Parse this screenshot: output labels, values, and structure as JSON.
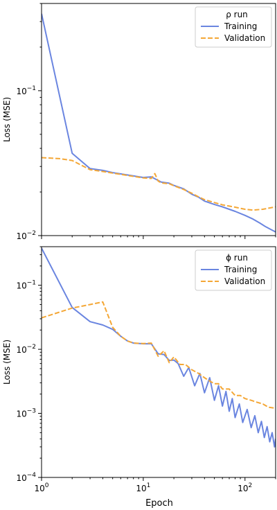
{
  "colors": {
    "training": "#6a85e0",
    "validation": "#f4a736",
    "background": "#ffffff",
    "axes": "#000000"
  },
  "figure": {
    "xlabel": "Epoch"
  },
  "chart_data": [
    {
      "type": "line",
      "ylabel": "Loss (MSE)",
      "xscale": "log",
      "yscale": "log",
      "xlim": [
        1,
        200
      ],
      "ylim": [
        0.01,
        0.4
      ],
      "x_ticks": [
        {
          "value": 1,
          "base": "10",
          "exp": "0"
        },
        {
          "value": 10,
          "base": "10",
          "exp": "1"
        },
        {
          "value": 100,
          "base": "10",
          "exp": "2"
        }
      ],
      "y_ticks": [
        {
          "value": 0.1,
          "base": "10",
          "exp": "−1"
        },
        {
          "value": 0.01,
          "base": "10",
          "exp": "−2"
        }
      ],
      "legend": {
        "title": "ρ run",
        "placement": "top-right",
        "entries": [
          "Training",
          "Validation"
        ]
      },
      "grid": false,
      "series": [
        {
          "name": "Training",
          "style": "solid",
          "points": [
            [
              1,
              0.34
            ],
            [
              2,
              0.037
            ],
            [
              3,
              0.029
            ],
            [
              4,
              0.0282
            ],
            [
              5,
              0.0272
            ],
            [
              7,
              0.0262
            ],
            [
              10,
              0.0252
            ],
            [
              12,
              0.0254
            ],
            [
              15,
              0.0234
            ],
            [
              18,
              0.023
            ],
            [
              20,
              0.0222
            ],
            [
              25,
              0.021
            ],
            [
              30,
              0.0193
            ],
            [
              35,
              0.0184
            ],
            [
              40,
              0.0173
            ],
            [
              50,
              0.0164
            ],
            [
              60,
              0.0158
            ],
            [
              70,
              0.0152
            ],
            [
              80,
              0.0147
            ],
            [
              100,
              0.0138
            ],
            [
              120,
              0.013
            ],
            [
              140,
              0.0122
            ],
            [
              160,
              0.0115
            ],
            [
              180,
              0.011
            ],
            [
              200,
              0.0106
            ]
          ]
        },
        {
          "name": "Validation",
          "style": "dashed",
          "points": [
            [
              1,
              0.0345
            ],
            [
              1.5,
              0.034
            ],
            [
              2,
              0.033
            ],
            [
              3,
              0.0285
            ],
            [
              4,
              0.0277
            ],
            [
              5,
              0.027
            ],
            [
              7,
              0.026
            ],
            [
              10,
              0.025
            ],
            [
              12,
              0.0248
            ],
            [
              13,
              0.0268
            ],
            [
              14,
              0.0238
            ],
            [
              15,
              0.0231
            ],
            [
              18,
              0.0228
            ],
            [
              20,
              0.0221
            ],
            [
              25,
              0.0208
            ],
            [
              30,
              0.0196
            ],
            [
              35,
              0.0185
            ],
            [
              40,
              0.0177
            ],
            [
              50,
              0.0169
            ],
            [
              60,
              0.0163
            ],
            [
              80,
              0.0157
            ],
            [
              100,
              0.0152
            ],
            [
              120,
              0.015
            ],
            [
              150,
              0.0152
            ],
            [
              200,
              0.0158
            ]
          ]
        }
      ]
    },
    {
      "type": "line",
      "ylabel": "Loss (MSE)",
      "xscale": "log",
      "yscale": "log",
      "xlim": [
        1,
        200
      ],
      "ylim": [
        0.0001,
        0.4
      ],
      "x_ticks": [
        {
          "value": 1,
          "base": "10",
          "exp": "0"
        },
        {
          "value": 10,
          "base": "10",
          "exp": "1"
        },
        {
          "value": 100,
          "base": "10",
          "exp": "2"
        }
      ],
      "y_ticks": [
        {
          "value": 0.1,
          "base": "10",
          "exp": "−1"
        },
        {
          "value": 0.01,
          "base": "10",
          "exp": "−2"
        },
        {
          "value": 0.001,
          "base": "10",
          "exp": "−3"
        },
        {
          "value": 0.0001,
          "base": "10",
          "exp": "−4"
        }
      ],
      "legend": {
        "title": "ϕ run",
        "placement": "top-right",
        "entries": [
          "Training",
          "Validation"
        ]
      },
      "grid": false,
      "series": [
        {
          "name": "Training",
          "style": "solid",
          "points": [
            [
              1,
              0.38
            ],
            [
              2,
              0.045
            ],
            [
              3,
              0.027
            ],
            [
              4,
              0.024
            ],
            [
              5,
              0.0205
            ],
            [
              6,
              0.016
            ],
            [
              7,
              0.0135
            ],
            [
              8,
              0.0125
            ],
            [
              10,
              0.0122
            ],
            [
              12,
              0.0122
            ],
            [
              14,
              0.0085
            ],
            [
              16,
              0.0083
            ],
            [
              18,
              0.0067
            ],
            [
              20,
              0.0068
            ],
            [
              22,
              0.006
            ],
            [
              25,
              0.0038
            ],
            [
              28,
              0.0052
            ],
            [
              32,
              0.0027
            ],
            [
              36,
              0.0042
            ],
            [
              40,
              0.0021
            ],
            [
              45,
              0.0036
            ],
            [
              50,
              0.0016
            ],
            [
              55,
              0.0027
            ],
            [
              60,
              0.0013
            ],
            [
              65,
              0.0022
            ],
            [
              70,
              0.00108
            ],
            [
              75,
              0.0017
            ],
            [
              80,
              0.00086
            ],
            [
              88,
              0.0014
            ],
            [
              95,
              0.00072
            ],
            [
              105,
              0.00115
            ],
            [
              115,
              0.0006
            ],
            [
              125,
              0.00092
            ],
            [
              135,
              0.0005
            ],
            [
              145,
              0.00075
            ],
            [
              155,
              0.00042
            ],
            [
              165,
              0.00062
            ],
            [
              175,
              0.00036
            ],
            [
              185,
              0.0005
            ],
            [
              195,
              0.0003
            ],
            [
              200,
              0.0004
            ]
          ]
        },
        {
          "name": "Validation",
          "style": "dashed",
          "points": [
            [
              1,
              0.031
            ],
            [
              2,
              0.044
            ],
            [
              3,
              0.05
            ],
            [
              4,
              0.055
            ],
            [
              5,
              0.022
            ],
            [
              6,
              0.016
            ],
            [
              7,
              0.0135
            ],
            [
              8,
              0.0125
            ],
            [
              10,
              0.0123
            ],
            [
              12,
              0.0125
            ],
            [
              14,
              0.0078
            ],
            [
              16,
              0.0095
            ],
            [
              18,
              0.0062
            ],
            [
              20,
              0.0076
            ],
            [
              23,
              0.0058
            ],
            [
              26,
              0.0058
            ],
            [
              30,
              0.0048
            ],
            [
              35,
              0.0042
            ],
            [
              40,
              0.0036
            ],
            [
              45,
              0.0032
            ],
            [
              50,
              0.0029
            ],
            [
              55,
              0.0029
            ],
            [
              60,
              0.0024
            ],
            [
              70,
              0.0024
            ],
            [
              80,
              0.0019
            ],
            [
              90,
              0.0019
            ],
            [
              100,
              0.0017
            ],
            [
              115,
              0.0016
            ],
            [
              130,
              0.0015
            ],
            [
              150,
              0.0014
            ],
            [
              170,
              0.00125
            ],
            [
              200,
              0.0012
            ]
          ]
        }
      ]
    }
  ]
}
